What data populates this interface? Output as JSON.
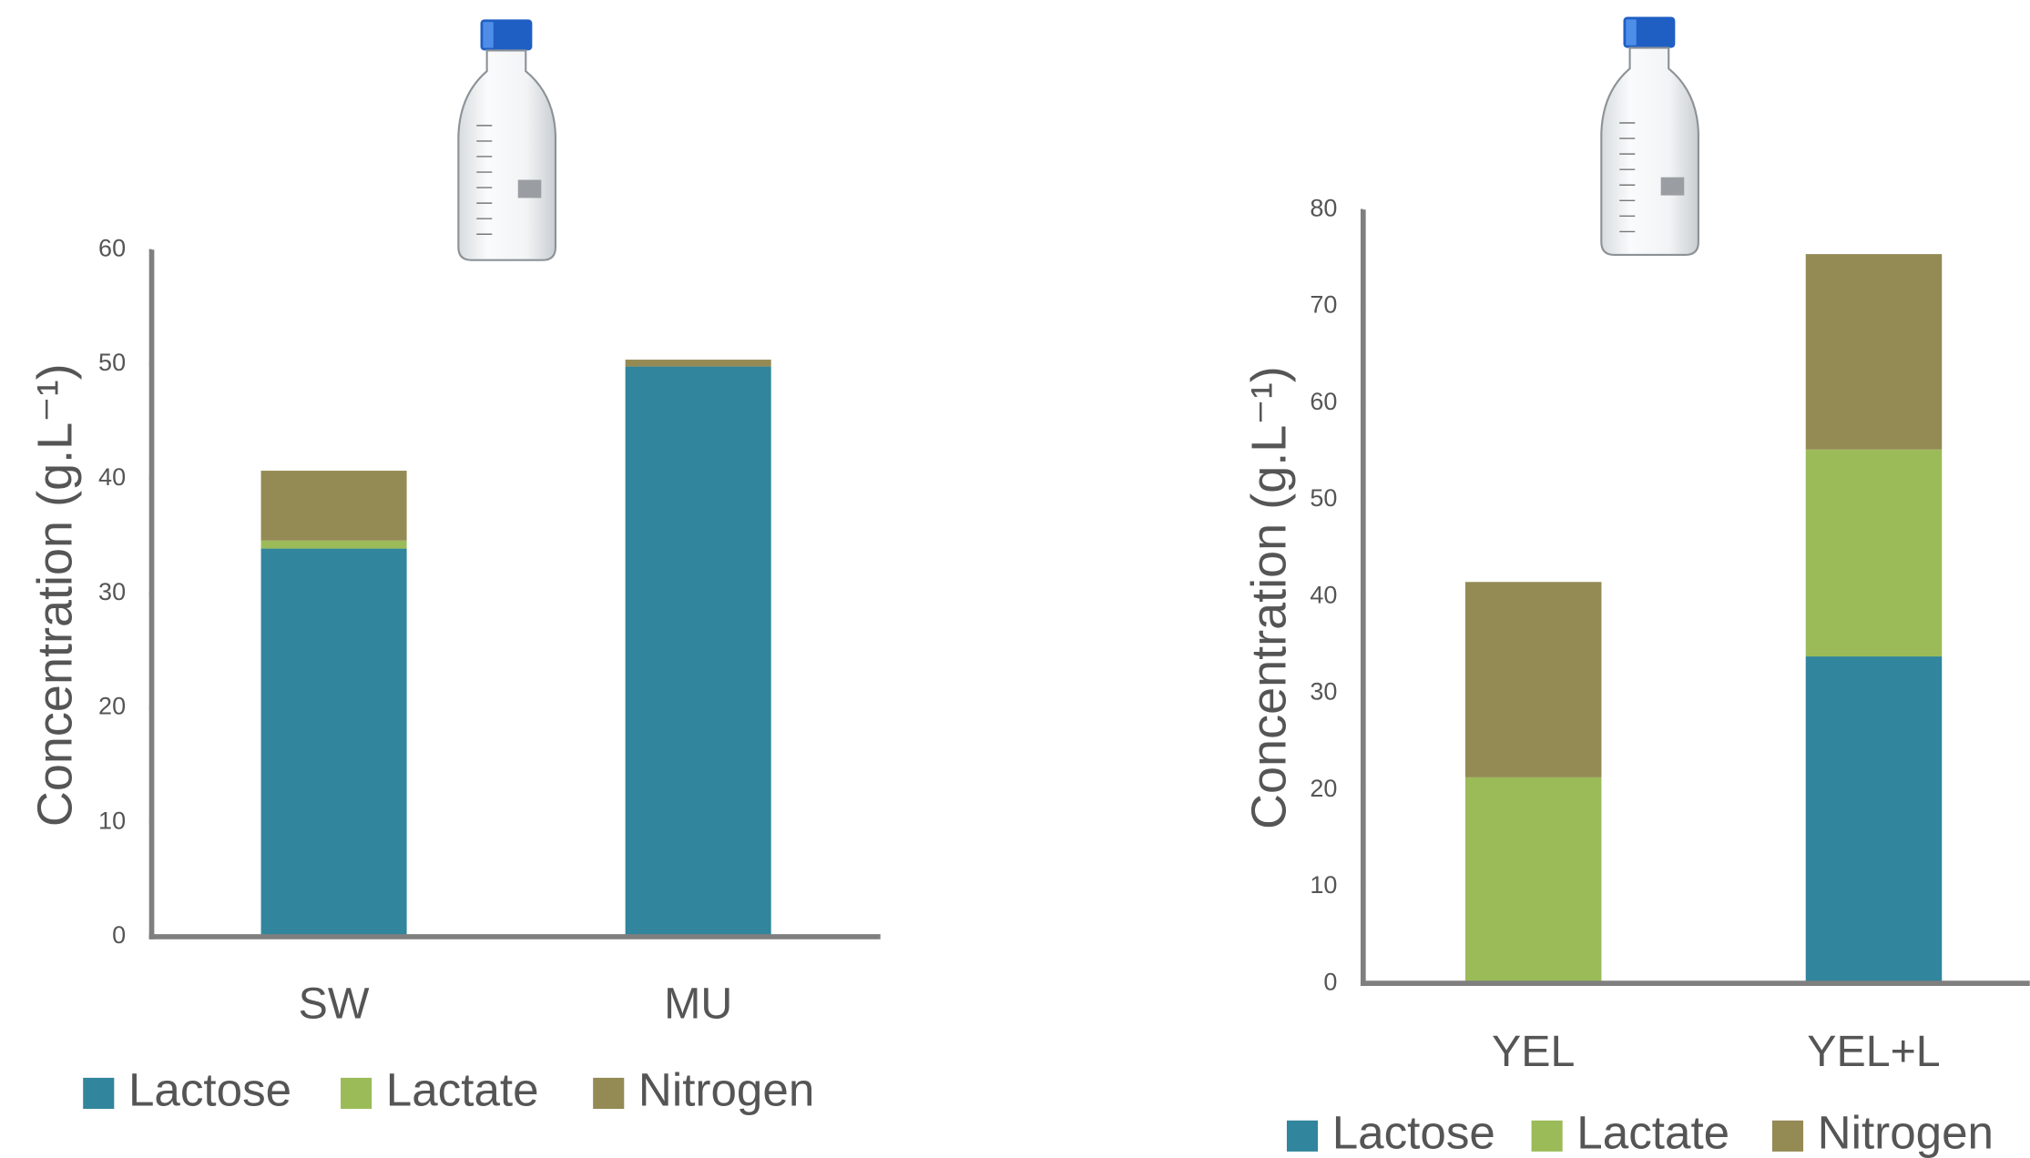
{
  "chart_data": [
    {
      "type": "stacked_bar",
      "y_label": "Concentration (g.L⁻¹)",
      "categories": [
        "SW",
        "MU"
      ],
      "series": [
        {
          "name": "Lactose",
          "color": "#31859c",
          "values": [
            33.9,
            49.8
          ]
        },
        {
          "name": "Lactate",
          "color": "#9bbb59",
          "values": [
            0.7,
            0
          ]
        },
        {
          "name": "Nitrogen",
          "color": "#948a54",
          "values": [
            6.1,
            0.6
          ]
        }
      ],
      "ylim": [
        0,
        60
      ],
      "yticks": [
        0,
        10,
        20,
        30,
        40,
        50,
        60
      ],
      "grid": false
    },
    {
      "type": "stacked_bar",
      "y_label": "Concentration (g.L⁻¹)",
      "categories": [
        "YEL",
        "YEL+L"
      ],
      "series": [
        {
          "name": "Lactose",
          "color": "#31859c",
          "values": [
            0,
            33.8
          ]
        },
        {
          "name": "Lactate",
          "color": "#9bbb59",
          "values": [
            21.3,
            21.4
          ]
        },
        {
          "name": "Nitrogen",
          "color": "#948a54",
          "values": [
            20.2,
            20.2
          ]
        }
      ],
      "ylim": [
        0,
        80
      ],
      "yticks": [
        0,
        10,
        20,
        30,
        40,
        50,
        60,
        70,
        80
      ],
      "grid": false
    }
  ]
}
